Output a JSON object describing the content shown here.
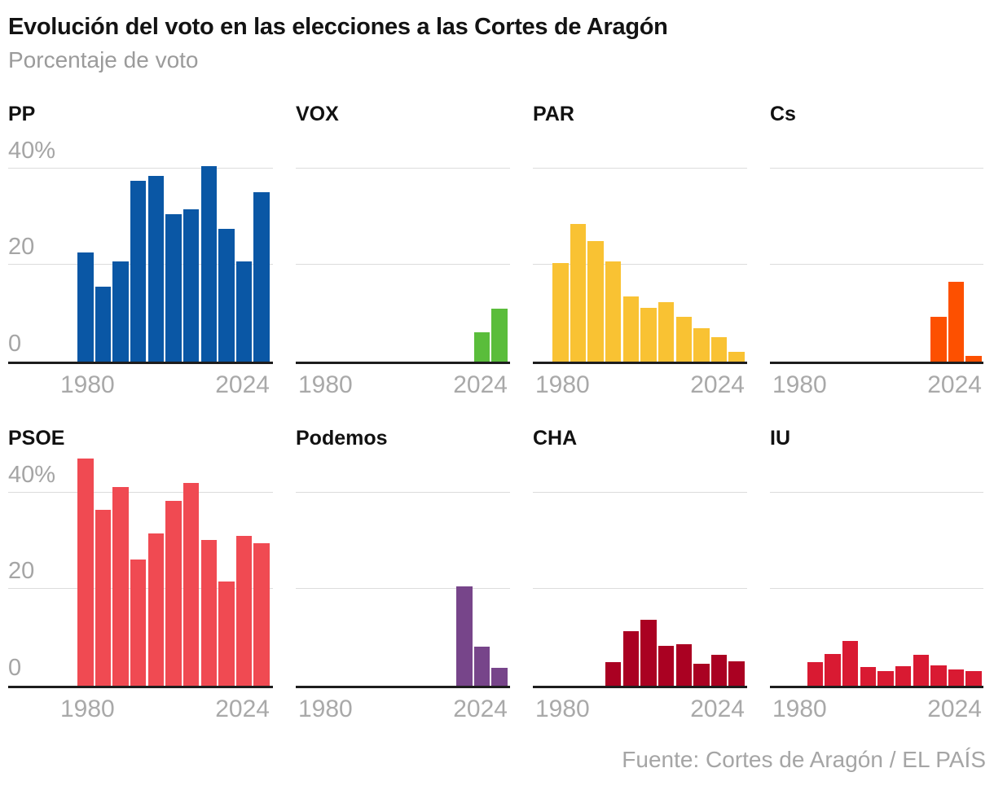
{
  "header": {
    "title": "Evolución del voto en las elecciones a las Cortes de Aragón",
    "subtitle": "Porcentaje de voto"
  },
  "footer": {
    "source": "Fuente: Cortes de Aragón / EL PAÍS"
  },
  "chart_data": {
    "type": "bar",
    "layout": "small-multiples-4-columns-2-rows",
    "title": "Evolución del voto en las elecciones a las Cortes de Aragón",
    "subtitle": "Porcentaje de voto",
    "unit": "percent of vote",
    "grid": true,
    "x_years": [
      1983,
      1987,
      1991,
      1995,
      1999,
      2003,
      2007,
      2011,
      2015,
      2019,
      2023
    ],
    "x_tick_labels": {
      "start": "1980",
      "end": "2024"
    },
    "y_ticks": [
      {
        "label": "40%",
        "value": 40
      },
      {
        "label": "20",
        "value": 20
      },
      {
        "label": "0",
        "value": 0
      }
    ],
    "ylim": [
      0,
      48
    ],
    "panels": [
      {
        "party": "PP",
        "color": "#0a57a5",
        "values": [
          22.5,
          15.5,
          20.8,
          37.5,
          38.5,
          30.5,
          31.5,
          40.5,
          27.5,
          20.8,
          35
        ]
      },
      {
        "party": "VOX",
        "color": "#5abd3b",
        "values": [
          null,
          null,
          null,
          null,
          null,
          null,
          null,
          null,
          null,
          6,
          11
        ]
      },
      {
        "party": "PAR",
        "color": "#f9c233",
        "values": [
          20.4,
          28.4,
          24.9,
          20.7,
          13.4,
          11.1,
          12.2,
          9.3,
          6.8,
          5,
          2
        ]
      },
      {
        "party": "Cs",
        "color": "#fd5000",
        "values": [
          null,
          null,
          null,
          null,
          null,
          null,
          null,
          null,
          9.3,
          16.5,
          1.2
        ]
      },
      {
        "party": "PSOE",
        "color": "#f04a52",
        "values": [
          47,
          36.4,
          41.2,
          26.2,
          31.5,
          38.3,
          42,
          30.1,
          21.5,
          31,
          29.5
        ]
      },
      {
        "party": "Podemos",
        "color": "#77458a",
        "values": [
          null,
          null,
          null,
          null,
          null,
          null,
          null,
          null,
          20.5,
          8,
          3.7
        ]
      },
      {
        "party": "CHA",
        "color": "#aa0122",
        "values": [
          null,
          null,
          null,
          4.9,
          11.3,
          13.7,
          8.3,
          8.5,
          4.5,
          6.3,
          5.1
        ]
      },
      {
        "party": "IU",
        "color": "#d91a32",
        "values": [
          null,
          4.9,
          6.6,
          9.2,
          3.8,
          3,
          4,
          6.4,
          4.1,
          3.3,
          3
        ]
      }
    ]
  }
}
